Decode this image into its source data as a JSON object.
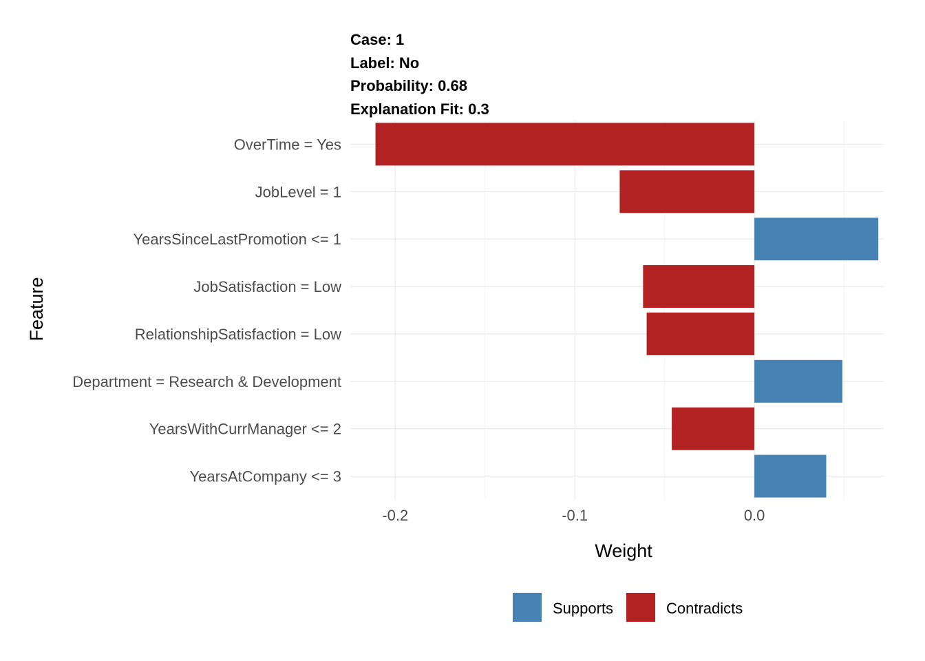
{
  "header": {
    "case": "Case: 1",
    "label": "Label: No",
    "probability": "Probability: 0.68",
    "fit": "Explanation Fit: 0.3"
  },
  "chart_data": {
    "type": "bar",
    "orientation": "horizontal",
    "categories": [
      "OverTime = Yes",
      "JobLevel = 1",
      "YearsSinceLastPromotion <= 1",
      "JobSatisfaction = Low",
      "RelationshipSatisfaction = Low",
      "Department = Research & Development",
      "YearsWithCurrManager <= 2",
      "YearsAtCompany <= 3"
    ],
    "values": [
      -0.211,
      -0.075,
      0.069,
      -0.062,
      -0.06,
      0.049,
      -0.046,
      0.04
    ],
    "xlabel": "Weight",
    "ylabel": "Feature",
    "xlim": [
      -0.225,
      0.072
    ],
    "x_ticks": [
      -0.2,
      -0.1,
      0.0
    ],
    "x_tick_labels": [
      "-0.2",
      "-0.1",
      "0.0"
    ],
    "grid": true,
    "legend": {
      "placement": "bottom",
      "entries": [
        {
          "name": "Supports",
          "color": "#4682b4"
        },
        {
          "name": "Contradicts",
          "color": "#b22222"
        }
      ]
    }
  }
}
